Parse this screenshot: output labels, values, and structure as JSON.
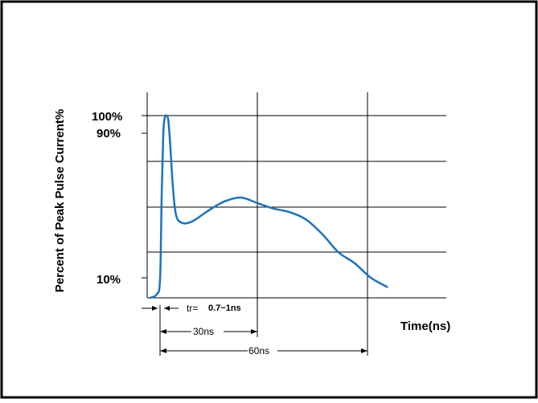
{
  "chart_data": {
    "type": "line",
    "ylabel": "Percent of Peak Pulse Current%",
    "xlabel": "Time(ns)",
    "y_tick_labels": [
      "100%",
      "90%",
      "10%"
    ],
    "annotations": {
      "rise_time_prefix": "tr=",
      "rise_time_value": "0.7~1ns",
      "span_30": "30ns",
      "span_60": "60ns"
    },
    "grid": true,
    "x_unit": "ns",
    "y_unit": "%",
    "series": [
      {
        "x": [
          -3,
          -1,
          0,
          0.5,
          1,
          1.5,
          2,
          2.5,
          3,
          4,
          5,
          7,
          10,
          15,
          20,
          25,
          30,
          35,
          40,
          45,
          50,
          55,
          60,
          65,
          70
        ],
        "values": [
          0,
          2,
          10,
          55,
          90,
          99,
          100,
          98,
          88,
          60,
          45,
          41,
          42,
          48,
          53,
          55,
          52,
          49,
          47,
          43,
          35,
          25,
          19,
          11,
          6
        ]
      }
    ],
    "xlim": [
      -3,
      80
    ],
    "ylim": [
      0,
      100
    ]
  },
  "colors": {
    "curve": "#1b73c0",
    "grid": "#000000",
    "border": "#000000"
  }
}
